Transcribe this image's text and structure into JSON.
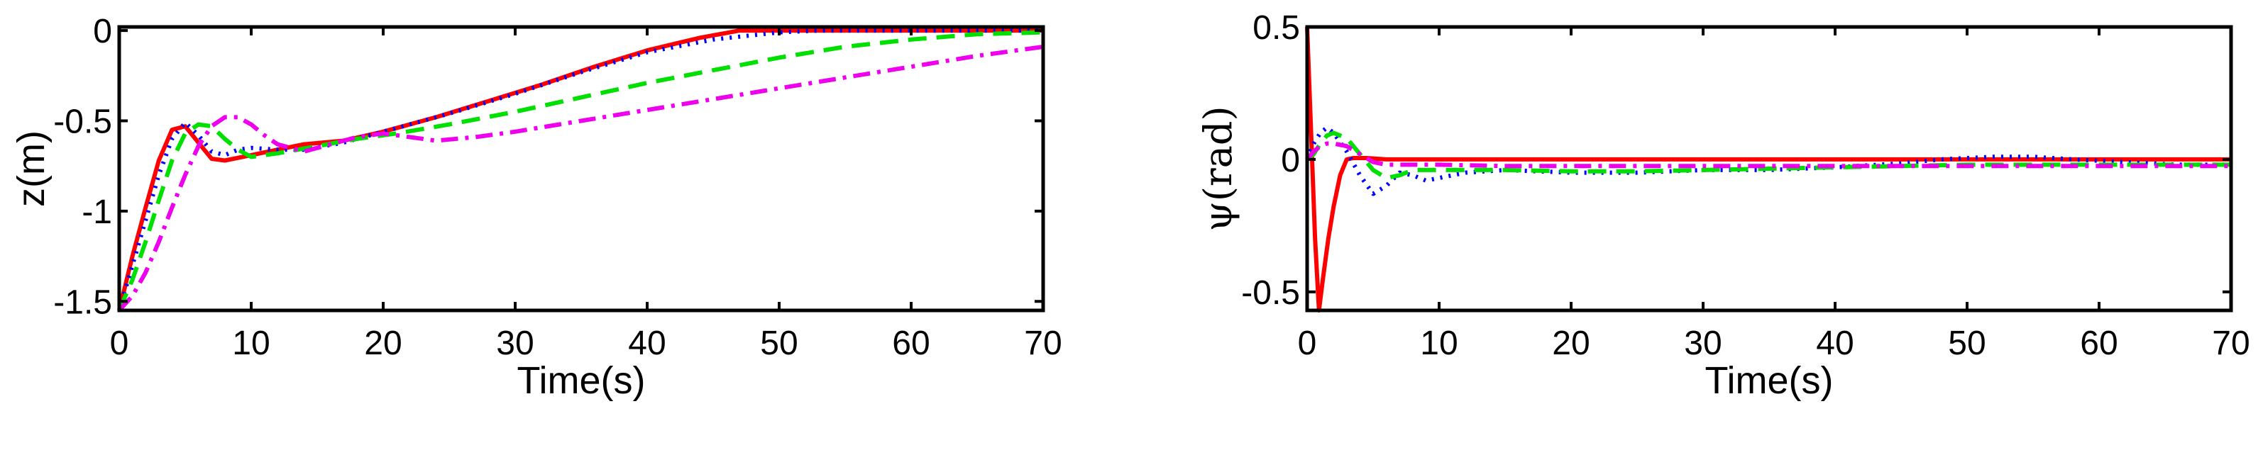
{
  "chart_data": [
    {
      "type": "line",
      "title": "",
      "xlabel": "Time(s)",
      "ylabel": "z(m)",
      "xlim": [
        0,
        70
      ],
      "ylim": [
        -1.55,
        0.02
      ],
      "xticks": [
        0,
        10,
        20,
        30,
        40,
        50,
        60,
        70
      ],
      "xtick_labels": [
        "0",
        "10",
        "20",
        "30",
        "40",
        "50",
        "60",
        "70"
      ],
      "yticks": [
        0,
        -0.5,
        -1,
        -1.5
      ],
      "ytick_labels": [
        "0",
        "-0.5",
        "-1",
        "-1.5"
      ],
      "series": [
        {
          "name": "solid-red",
          "color": "#ff0000",
          "dash": "solid",
          "x": [
            0,
            1,
            2,
            3,
            4,
            5,
            6,
            7,
            8,
            10,
            12,
            14,
            17,
            20,
            24,
            28,
            32,
            36,
            40,
            44,
            47,
            50,
            55,
            60,
            70
          ],
          "y": [
            -1.55,
            -1.25,
            -0.98,
            -0.72,
            -0.55,
            -0.53,
            -0.62,
            -0.71,
            -0.72,
            -0.69,
            -0.66,
            -0.63,
            -0.61,
            -0.56,
            -0.48,
            -0.39,
            -0.3,
            -0.2,
            -0.11,
            -0.04,
            0.0,
            0.0,
            0.0,
            0.0,
            0.0
          ]
        },
        {
          "name": "dotted-blue",
          "color": "#0000ff",
          "dash": "dotted",
          "x": [
            0,
            1,
            2,
            3,
            4,
            5,
            6,
            7,
            8,
            9,
            10,
            12,
            14,
            17,
            20,
            25,
            30,
            35,
            40,
            45,
            50,
            53,
            55,
            60,
            70
          ],
          "y": [
            -1.55,
            -1.3,
            -1.05,
            -0.8,
            -0.6,
            -0.51,
            -0.58,
            -0.67,
            -0.69,
            -0.66,
            -0.65,
            -0.66,
            -0.66,
            -0.62,
            -0.56,
            -0.46,
            -0.35,
            -0.23,
            -0.12,
            -0.05,
            -0.01,
            0.0,
            0.0,
            0.0,
            0.0
          ]
        },
        {
          "name": "dashed-green",
          "color": "#00e000",
          "dash": "dashed",
          "x": [
            0,
            1,
            2,
            3,
            4,
            5,
            6,
            7,
            8,
            9,
            10,
            12,
            15,
            18,
            21,
            25,
            30,
            35,
            40,
            45,
            50,
            55,
            60,
            65,
            70
          ],
          "y": [
            -1.55,
            -1.38,
            -1.17,
            -0.94,
            -0.72,
            -0.57,
            -0.52,
            -0.53,
            -0.6,
            -0.66,
            -0.7,
            -0.68,
            -0.64,
            -0.6,
            -0.57,
            -0.52,
            -0.45,
            -0.37,
            -0.29,
            -0.22,
            -0.15,
            -0.09,
            -0.05,
            -0.02,
            -0.01
          ]
        },
        {
          "name": "dashdot-magenta",
          "color": "#ee00ee",
          "dash": "dashdot",
          "x": [
            0,
            1,
            2,
            3,
            4,
            5,
            6,
            7,
            8,
            9,
            10,
            11,
            12,
            14,
            16,
            18,
            20,
            22,
            24,
            27,
            30,
            35,
            40,
            45,
            50,
            55,
            60,
            65,
            70
          ],
          "y": [
            -1.55,
            -1.47,
            -1.34,
            -1.17,
            -0.98,
            -0.8,
            -0.64,
            -0.53,
            -0.48,
            -0.48,
            -0.52,
            -0.58,
            -0.63,
            -0.67,
            -0.63,
            -0.59,
            -0.57,
            -0.59,
            -0.61,
            -0.59,
            -0.56,
            -0.5,
            -0.44,
            -0.38,
            -0.32,
            -0.26,
            -0.2,
            -0.14,
            -0.09
          ]
        }
      ]
    },
    {
      "type": "line",
      "title": "",
      "xlabel": "Time(s)",
      "ylabel": "ψ(rad)",
      "xlim": [
        0,
        70
      ],
      "ylim": [
        -0.57,
        0.5
      ],
      "xticks": [
        0,
        10,
        20,
        30,
        40,
        50,
        60,
        70
      ],
      "xtick_labels": [
        "0",
        "10",
        "20",
        "30",
        "40",
        "50",
        "60",
        "70"
      ],
      "yticks": [
        0.5,
        0,
        -0.5
      ],
      "ytick_labels": [
        "0.5",
        "0",
        "-0.5"
      ],
      "series": [
        {
          "name": "solid-red",
          "color": "#ff0000",
          "dash": "solid",
          "x": [
            0,
            0.3,
            0.6,
            0.9,
            1.2,
            1.6,
            2.0,
            2.5,
            3.0,
            3.5,
            4.5,
            6,
            10,
            20,
            30,
            40,
            50,
            60,
            70
          ],
          "y": [
            0.5,
            0.1,
            -0.3,
            -0.57,
            -0.45,
            -0.3,
            -0.18,
            -0.06,
            0.0,
            0.005,
            0.005,
            0.0,
            0.0,
            0.0,
            0.0,
            0.0,
            0.0,
            0.0,
            0.0
          ]
        },
        {
          "name": "dotted-blue",
          "color": "#0000ff",
          "dash": "dotted",
          "x": [
            0,
            0.5,
            1,
            1.5,
            2,
            3,
            4,
            5,
            6,
            7,
            8,
            9,
            10,
            12,
            15,
            20,
            25,
            30,
            35,
            40,
            45,
            48,
            52,
            55,
            58,
            62,
            66,
            70
          ],
          "y": [
            0.0,
            0.06,
            0.1,
            0.12,
            0.1,
            0.03,
            -0.06,
            -0.13,
            -0.1,
            -0.05,
            -0.06,
            -0.08,
            -0.07,
            -0.05,
            -0.04,
            -0.05,
            -0.05,
            -0.04,
            -0.04,
            -0.03,
            -0.015,
            0.0,
            0.01,
            0.01,
            0.0,
            -0.01,
            -0.02,
            -0.02
          ]
        },
        {
          "name": "dashed-green",
          "color": "#00e000",
          "dash": "dashed",
          "x": [
            0,
            0.5,
            1,
            1.5,
            2,
            3,
            4,
            5,
            6,
            7,
            8,
            10,
            12,
            15,
            20,
            25,
            30,
            35,
            40,
            45,
            50,
            55,
            60,
            65,
            70
          ],
          "y": [
            0.0,
            0.02,
            0.06,
            0.09,
            0.1,
            0.08,
            0.02,
            -0.04,
            -0.07,
            -0.06,
            -0.04,
            -0.04,
            -0.04,
            -0.04,
            -0.045,
            -0.045,
            -0.04,
            -0.035,
            -0.03,
            -0.025,
            -0.02,
            -0.02,
            -0.02,
            -0.02,
            -0.02
          ]
        },
        {
          "name": "dashdot-magenta",
          "color": "#ee00ee",
          "dash": "dashdot",
          "x": [
            0,
            0.5,
            1,
            1.5,
            2,
            3,
            4,
            5,
            6,
            8,
            10,
            15,
            20,
            30,
            40,
            50,
            60,
            70
          ],
          "y": [
            0.0,
            0.03,
            0.05,
            0.06,
            0.06,
            0.05,
            0.02,
            -0.01,
            -0.02,
            -0.02,
            -0.02,
            -0.025,
            -0.025,
            -0.025,
            -0.025,
            -0.025,
            -0.025,
            -0.025
          ]
        }
      ]
    }
  ]
}
